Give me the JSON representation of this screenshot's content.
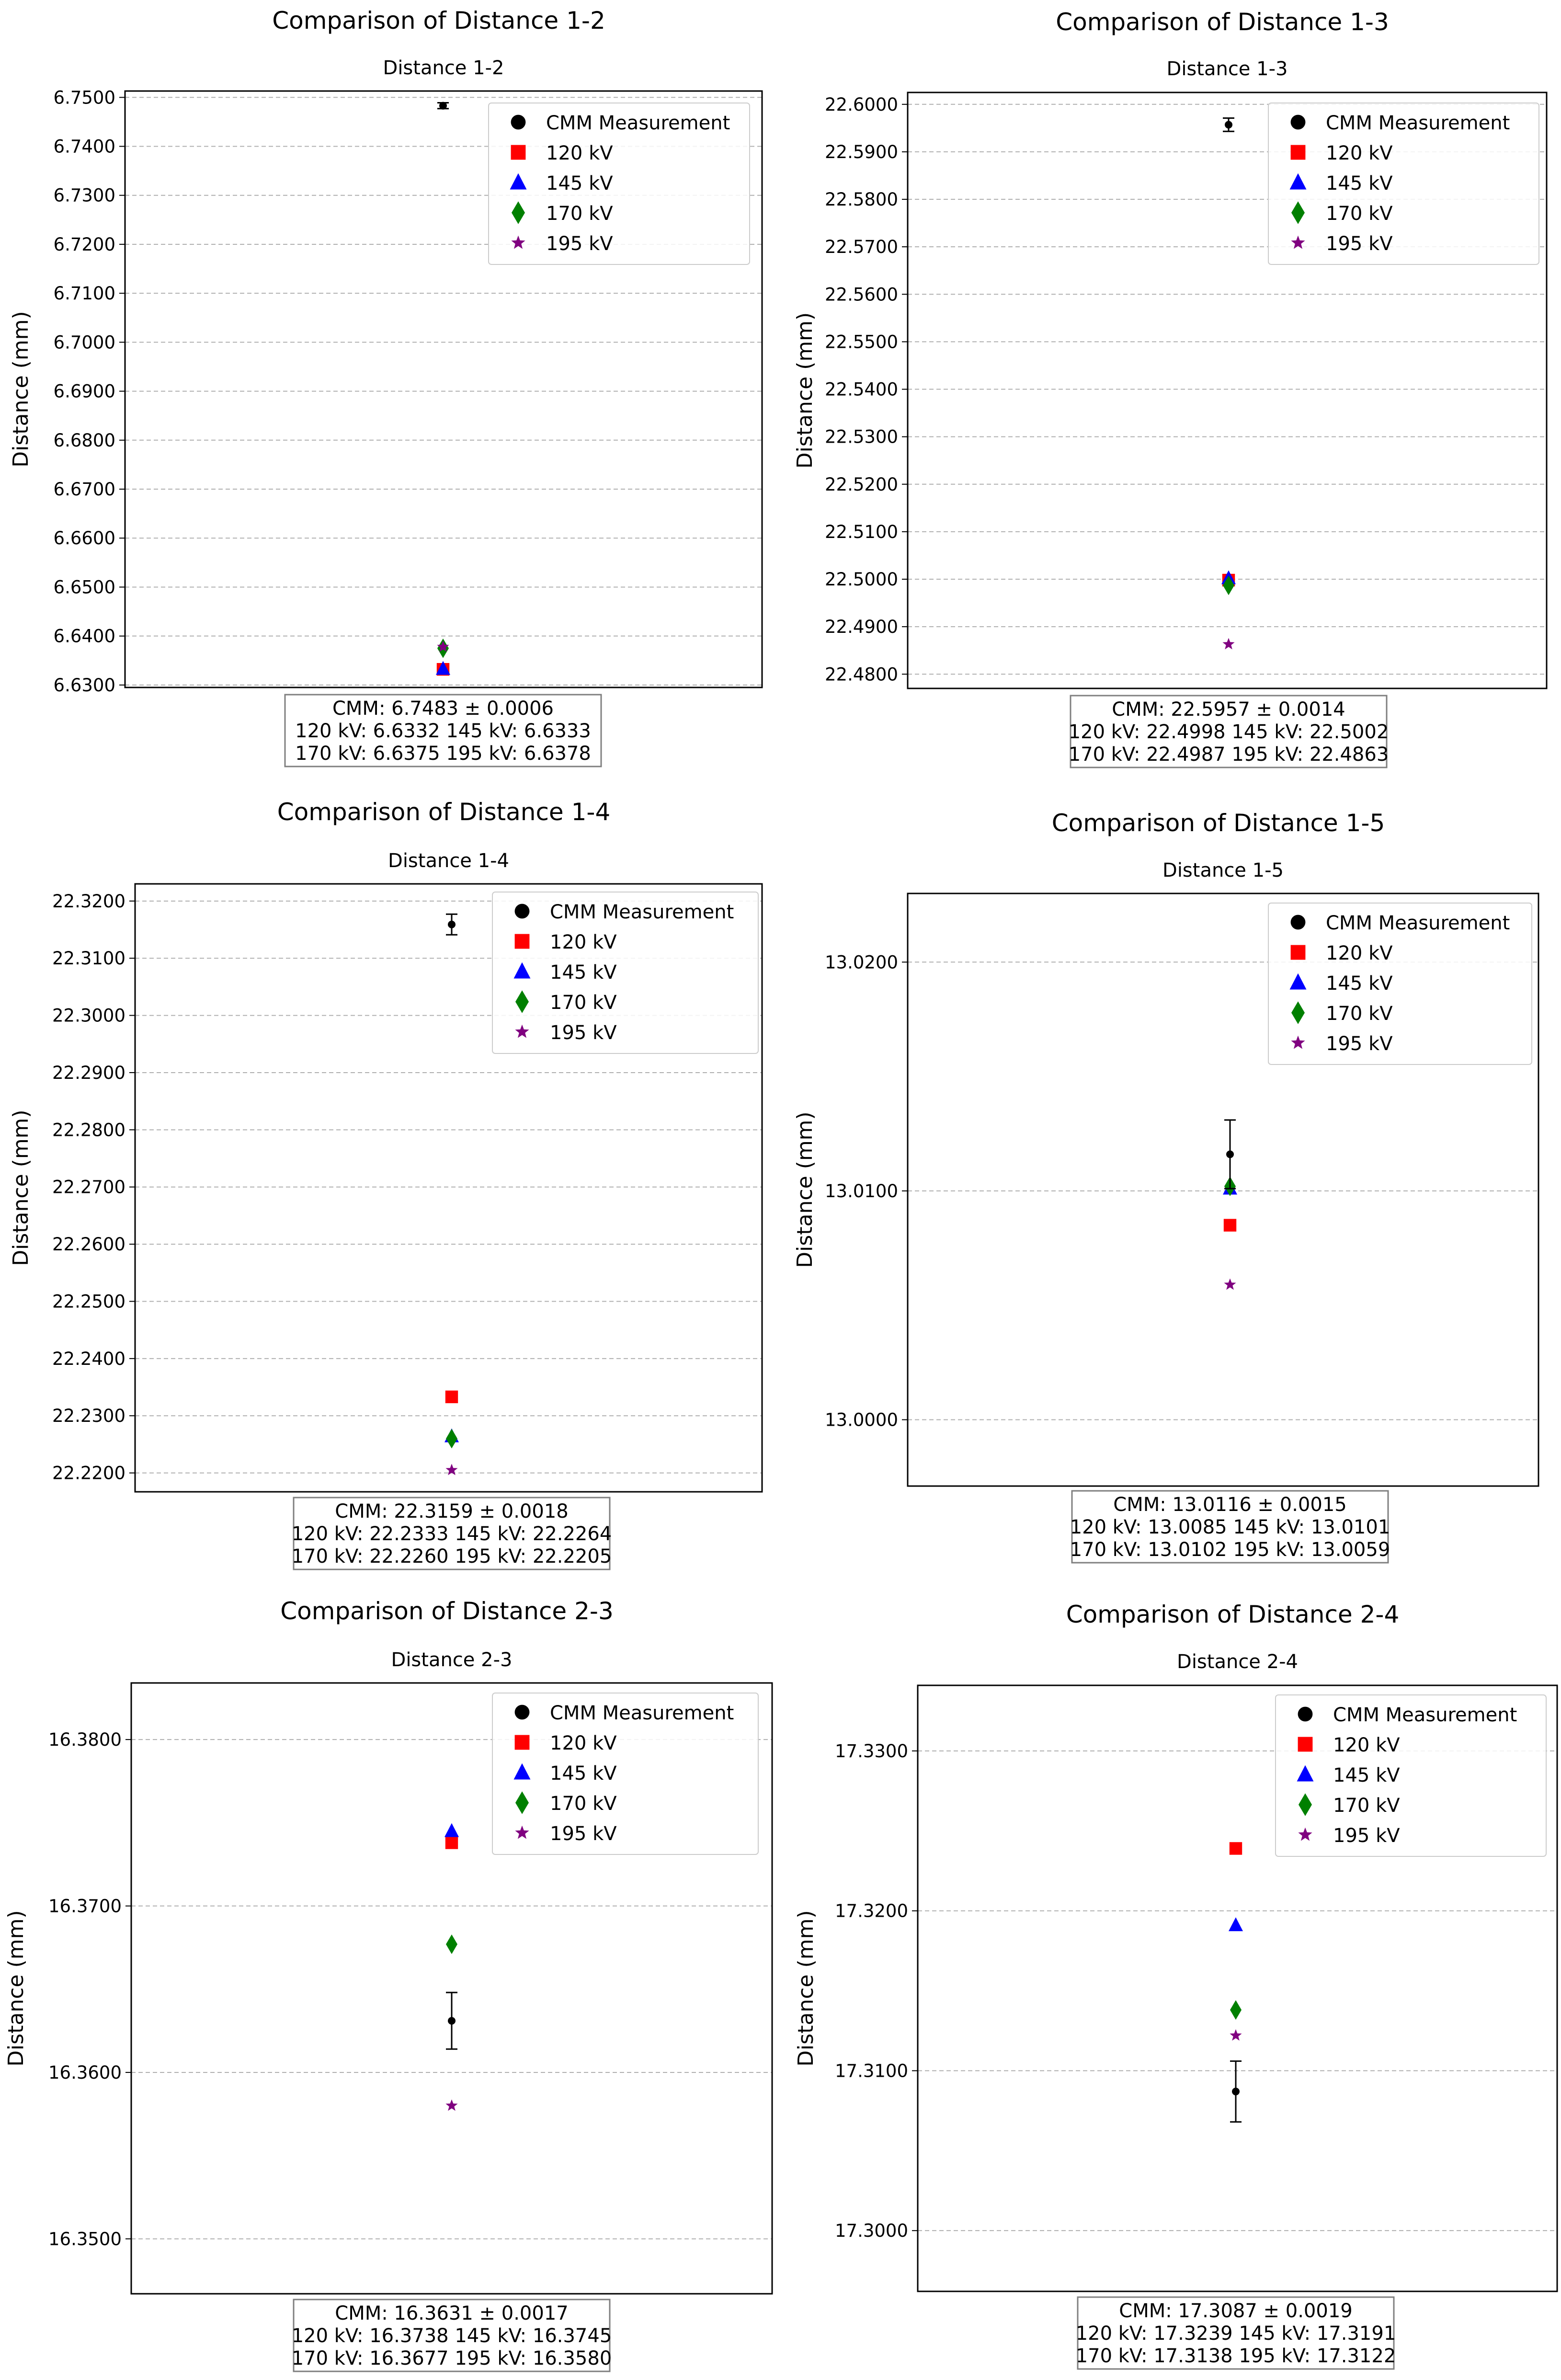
{
  "figure": {
    "type": "scatter-errorbar-grid",
    "rows": 3,
    "cols": 2
  },
  "chart_data": [
    {
      "type": "scatter",
      "suptitle": "Comparison of Distance 1-2",
      "title": "Distance 1-2",
      "ylabel": "Distance (mm)",
      "ylim": [
        6.6295,
        6.7513
      ],
      "yticks": [
        6.63,
        6.64,
        6.65,
        6.66,
        6.67,
        6.68,
        6.69,
        6.7,
        6.71,
        6.72,
        6.73,
        6.74,
        6.75
      ],
      "tick_labels": [
        "6.6300",
        "6.6400",
        "6.6500",
        "6.6600",
        "6.6700",
        "6.6800",
        "6.6900",
        "6.7000",
        "6.7100",
        "6.7200",
        "6.7300",
        "6.7400",
        "6.7500"
      ],
      "grid": true,
      "legend": [
        "CMM Measurement",
        "120 kV",
        "145 kV",
        "170 kV",
        "195 kV"
      ],
      "legend_loc": "upper right",
      "cmm": {
        "value": 6.7483,
        "error": 0.0006
      },
      "values": {
        "120 kV": 6.6332,
        "145 kV": 6.6333,
        "170 kV": 6.6375,
        "195 kV": 6.6378
      },
      "summary": [
        "CMM: 6.7483 ± 0.0006",
        "120 kV: 6.6332 145 kV: 6.6333",
        "170 kV: 6.6375 195 kV: 6.6378"
      ]
    },
    {
      "type": "scatter",
      "suptitle": "Comparison of Distance 1-3",
      "title": "Distance 1-3",
      "ylabel": "Distance (mm)",
      "ylim": [
        22.477,
        22.6025
      ],
      "yticks": [
        22.48,
        22.49,
        22.5,
        22.51,
        22.52,
        22.53,
        22.54,
        22.55,
        22.56,
        22.57,
        22.58,
        22.59,
        22.6
      ],
      "tick_labels": [
        "22.4800",
        "22.4900",
        "22.5000",
        "22.5100",
        "22.5200",
        "22.5300",
        "22.5400",
        "22.5500",
        "22.5600",
        "22.5700",
        "22.5800",
        "22.5900",
        "22.6000"
      ],
      "grid": true,
      "legend": [
        "CMM Measurement",
        "120 kV",
        "145 kV",
        "170 kV",
        "195 kV"
      ],
      "legend_loc": "upper right",
      "cmm": {
        "value": 22.5957,
        "error": 0.0014
      },
      "values": {
        "120 kV": 22.4998,
        "145 kV": 22.5002,
        "170 kV": 22.4987,
        "195 kV": 22.4863
      },
      "summary": [
        "CMM: 22.5957 ± 0.0014",
        "120 kV: 22.4998 145 kV: 22.5002",
        "170 kV: 22.4987 195 kV: 22.4863"
      ]
    },
    {
      "type": "scatter",
      "suptitle": "Comparison of Distance 1-4",
      "title": "Distance 1-4",
      "ylabel": "Distance (mm)",
      "ylim": [
        22.2167,
        22.323
      ],
      "yticks": [
        22.22,
        22.23,
        22.24,
        22.25,
        22.26,
        22.27,
        22.28,
        22.29,
        22.3,
        22.31,
        22.32
      ],
      "tick_labels": [
        "22.2200",
        "22.2300",
        "22.2400",
        "22.2500",
        "22.2600",
        "22.2700",
        "22.2800",
        "22.2900",
        "22.3000",
        "22.3100",
        "22.3200"
      ],
      "grid": true,
      "legend": [
        "CMM Measurement",
        "120 kV",
        "145 kV",
        "170 kV",
        "195 kV"
      ],
      "legend_loc": "upper right",
      "cmm": {
        "value": 22.3159,
        "error": 0.0018
      },
      "values": {
        "120 kV": 22.2333,
        "145 kV": 22.2264,
        "170 kV": 22.226,
        "195 kV": 22.2205
      },
      "summary": [
        "CMM: 22.3159 ± 0.0018",
        "120 kV: 22.2333 145 kV: 22.2264",
        "170 kV: 22.2260 195 kV: 22.2205"
      ]
    },
    {
      "type": "scatter",
      "suptitle": "Comparison of Distance 1-5",
      "title": "Distance 1-5",
      "ylabel": "Distance (mm)",
      "ylim": [
        12.9971,
        13.023
      ],
      "yticks": [
        13.0,
        13.01,
        13.02
      ],
      "tick_labels": [
        "13.0000",
        "13.0100",
        "13.0200"
      ],
      "grid": true,
      "legend": [
        "CMM Measurement",
        "120 kV",
        "145 kV",
        "170 kV",
        "195 kV"
      ],
      "legend_loc": "upper right",
      "cmm": {
        "value": 13.0116,
        "error": 0.0015
      },
      "values": {
        "120 kV": 13.0085,
        "145 kV": 13.0101,
        "170 kV": 13.0102,
        "195 kV": 13.0059
      },
      "summary": [
        "CMM: 13.0116 ± 0.0015",
        "120 kV: 13.0085 145 kV: 13.0101",
        "170 kV: 13.0102 195 kV: 13.0059"
      ]
    },
    {
      "type": "scatter",
      "suptitle": "Comparison of Distance 2-3",
      "title": "Distance 2-3",
      "ylabel": "Distance (mm)",
      "ylim": [
        16.3467,
        16.3834
      ],
      "yticks": [
        16.35,
        16.36,
        16.37,
        16.38
      ],
      "tick_labels": [
        "16.3500",
        "16.3600",
        "16.3700",
        "16.3800"
      ],
      "grid": true,
      "legend": [
        "CMM Measurement",
        "120 kV",
        "145 kV",
        "170 kV",
        "195 kV"
      ],
      "legend_loc": "upper right",
      "cmm": {
        "value": 16.3631,
        "error": 0.0017
      },
      "values": {
        "120 kV": 16.3738,
        "145 kV": 16.3745,
        "170 kV": 16.3677,
        "195 kV": 16.358
      },
      "summary": [
        "CMM: 16.3631 ± 0.0017",
        "120 kV: 16.3738 145 kV: 16.3745",
        "170 kV: 16.3677 195 kV: 16.3580"
      ]
    },
    {
      "type": "scatter",
      "suptitle": "Comparison of Distance 2-4",
      "title": "Distance 2-4",
      "ylabel": "Distance (mm)",
      "ylim": [
        17.2962,
        17.3341
      ],
      "yticks": [
        17.3,
        17.31,
        17.32,
        17.33
      ],
      "tick_labels": [
        "17.3000",
        "17.3100",
        "17.3200",
        "17.3300"
      ],
      "grid": true,
      "legend": [
        "CMM Measurement",
        "120 kV",
        "145 kV",
        "170 kV",
        "195 kV"
      ],
      "legend_loc": "upper right",
      "cmm": {
        "value": 17.3087,
        "error": 0.0019
      },
      "values": {
        "120 kV": 17.3239,
        "145 kV": 17.3191,
        "170 kV": 17.3138,
        "195 kV": 17.3122
      },
      "summary": [
        "CMM: 17.3087 ± 0.0019",
        "120 kV: 17.3239 145 kV: 17.3191",
        "170 kV: 17.3138 195 kV: 17.3122"
      ]
    }
  ],
  "series_style": {
    "CMM Measurement": {
      "marker": "circle",
      "color": "#000000"
    },
    "120 kV": {
      "marker": "square",
      "color": "#ff0000"
    },
    "145 kV": {
      "marker": "triangle",
      "color": "#0000ff"
    },
    "170 kV": {
      "marker": "diamond",
      "color": "#008000"
    },
    "195 kV": {
      "marker": "star",
      "color": "#800080"
    }
  }
}
